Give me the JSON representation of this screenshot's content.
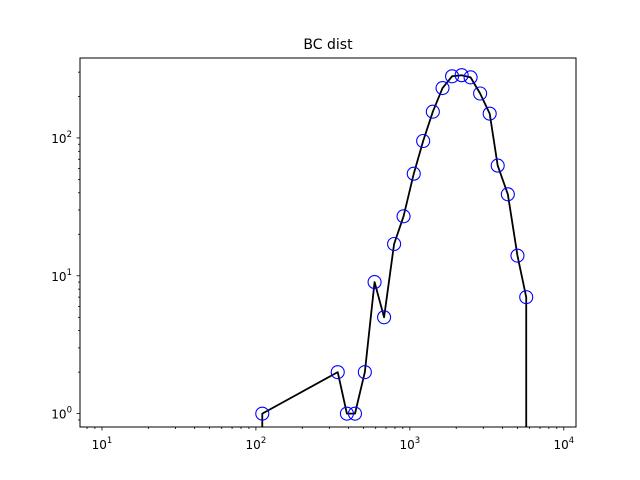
{
  "chart_data": {
    "type": "line",
    "title": "BC dist",
    "xlabel": "",
    "ylabel": "",
    "xscale": "log",
    "yscale": "log",
    "xlim": [
      7.2,
      12000
    ],
    "ylim": [
      0.8,
      380
    ],
    "x_ticks": [
      {
        "base": "10",
        "exp": "1",
        "value": 10
      },
      {
        "base": "10",
        "exp": "2",
        "value": 100
      },
      {
        "base": "10",
        "exp": "3",
        "value": 1000
      },
      {
        "base": "10",
        "exp": "4",
        "value": 10000
      }
    ],
    "y_ticks": [
      {
        "base": "10",
        "exp": "0",
        "value": 1
      },
      {
        "base": "10",
        "exp": "1",
        "value": 10
      },
      {
        "base": "10",
        "exp": "2",
        "value": 100
      }
    ],
    "grid": false,
    "line_color": "#000000",
    "marker_color": "#0000ff",
    "marker": "open-circle",
    "series": [
      {
        "x": [
          110,
          340,
          390,
          440,
          510,
          590,
          680,
          790,
          910,
          1060,
          1220,
          1410,
          1630,
          1880,
          2170,
          2480,
          2860,
          3300,
          3720,
          4330,
          5000,
          5700
        ],
        "y": [
          1,
          2,
          1,
          1,
          2,
          9,
          5,
          17,
          27,
          55,
          95,
          155,
          230,
          280,
          285,
          275,
          210,
          150,
          63,
          39,
          14,
          7
        ]
      }
    ]
  }
}
